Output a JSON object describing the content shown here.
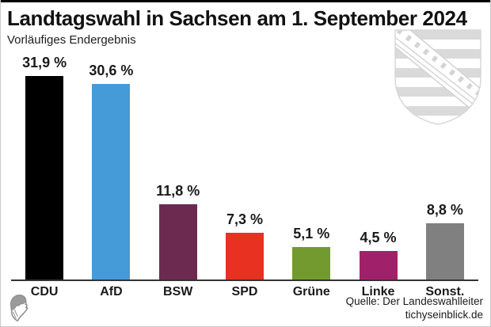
{
  "header": {
    "title": "Landtagswahl in Sachsen am 1. September 2024",
    "subtitle": "Vorläufiges Endergebnis"
  },
  "chart_data": {
    "type": "bar",
    "title": "Landtagswahl in Sachsen am 1. September 2024",
    "subtitle": "Vorläufiges Endergebnis",
    "categories": [
      "CDU",
      "AfD",
      "BSW",
      "SPD",
      "Grüne",
      "Linke",
      "Sonst."
    ],
    "values": [
      31.9,
      30.6,
      11.8,
      7.3,
      5.1,
      4.5,
      8.8
    ],
    "value_labels": [
      "31,9 %",
      "30,6 %",
      "11,8 %",
      "7,3 %",
      "5,1 %",
      "4,5 %",
      "8,8 %"
    ],
    "bar_colors": [
      "#000000",
      "#449bd8",
      "#6d2a50",
      "#e93122",
      "#739a2f",
      "#a02169",
      "#808080"
    ],
    "xlabel": "",
    "ylabel": "",
    "ylim": [
      0,
      35
    ],
    "grid": false,
    "legend": "none",
    "axis_color": "#333333"
  },
  "icons": {
    "coat_of_arms": "saxony-coat-of-arms-watermark",
    "logo": "tichys-einblick-head-logo"
  },
  "footer": {
    "source": "Quelle: Der Landeswahlleiter",
    "website": "tichyseinblick.de"
  }
}
